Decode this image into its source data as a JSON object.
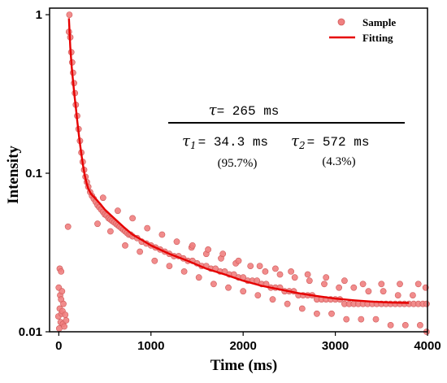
{
  "chart_data": {
    "type": "scatter",
    "xlabel": "Time (ms)",
    "ylabel": "Intensity",
    "xlim": [
      -100,
      4000
    ],
    "ylim": [
      0.01,
      1.1
    ],
    "yscale": "log",
    "x_ticks": [
      0,
      1000,
      2000,
      3000,
      4000
    ],
    "x_tick_labels": [
      "0",
      "1000",
      "2000",
      "3000",
      "4000"
    ],
    "y_ticks": [
      0.01,
      0.1,
      1
    ],
    "y_tick_labels": [
      "0.01",
      "0.1",
      "1"
    ],
    "legend_position": "top-right",
    "colors": {
      "sample": "#f08080",
      "sample_edge": "#d05a5a",
      "fitting": "#e60000"
    },
    "series": [
      {
        "name": "Sample",
        "kind": "scatter",
        "points": [
          [
            -5,
            0.0125
          ],
          [
            0,
            0.019
          ],
          [
            5,
            0.0105
          ],
          [
            10,
            0.014
          ],
          [
            15,
            0.017
          ],
          [
            20,
            0.0115
          ],
          [
            25,
            0.016
          ],
          [
            30,
            0.013
          ],
          [
            35,
            0.018
          ],
          [
            40,
            0.0135
          ],
          [
            45,
            0.0112
          ],
          [
            50,
            0.015
          ],
          [
            60,
            0.0108
          ],
          [
            70,
            0.0128
          ],
          [
            80,
            0.0118
          ],
          [
            10,
            0.025
          ],
          [
            25,
            0.024
          ],
          [
            100,
            0.046
          ],
          [
            110,
            0.78
          ],
          [
            115,
            1.0
          ],
          [
            125,
            0.72
          ],
          [
            135,
            0.58
          ],
          [
            145,
            0.5
          ],
          [
            155,
            0.43
          ],
          [
            165,
            0.37
          ],
          [
            175,
            0.32
          ],
          [
            185,
            0.27
          ],
          [
            200,
            0.23
          ],
          [
            215,
            0.19
          ],
          [
            230,
            0.16
          ],
          [
            245,
            0.135
          ],
          [
            260,
            0.118
          ],
          [
            275,
            0.105
          ],
          [
            290,
            0.095
          ],
          [
            305,
            0.088
          ],
          [
            320,
            0.082
          ],
          [
            340,
            0.076
          ],
          [
            360,
            0.072
          ],
          [
            380,
            0.069
          ],
          [
            400,
            0.066
          ],
          [
            420,
            0.063
          ],
          [
            440,
            0.061
          ],
          [
            460,
            0.059
          ],
          [
            480,
            0.057
          ],
          [
            500,
            0.055
          ],
          [
            520,
            0.054
          ],
          [
            540,
            0.052
          ],
          [
            560,
            0.051
          ],
          [
            580,
            0.05
          ],
          [
            600,
            0.049
          ],
          [
            620,
            0.048
          ],
          [
            640,
            0.047
          ],
          [
            660,
            0.046
          ],
          [
            680,
            0.045
          ],
          [
            700,
            0.044
          ],
          [
            720,
            0.043
          ],
          [
            740,
            0.042
          ],
          [
            760,
            0.041
          ],
          [
            780,
            0.041
          ],
          [
            800,
            0.04
          ],
          [
            850,
            0.039
          ],
          [
            900,
            0.037
          ],
          [
            950,
            0.036
          ],
          [
            1000,
            0.035
          ],
          [
            1050,
            0.034
          ],
          [
            1100,
            0.033
          ],
          [
            1150,
            0.032
          ],
          [
            1200,
            0.031
          ],
          [
            1250,
            0.03
          ],
          [
            1300,
            0.03
          ],
          [
            1350,
            0.029
          ],
          [
            1400,
            0.028
          ],
          [
            1450,
            0.028
          ],
          [
            1500,
            0.027
          ],
          [
            1550,
            0.026
          ],
          [
            1600,
            0.026
          ],
          [
            1650,
            0.025
          ],
          [
            1700,
            0.025
          ],
          [
            1750,
            0.024
          ],
          [
            1800,
            0.024
          ],
          [
            1850,
            0.023
          ],
          [
            1900,
            0.023
          ],
          [
            1950,
            0.022
          ],
          [
            2000,
            0.022
          ],
          [
            2050,
            0.021
          ],
          [
            2100,
            0.021
          ],
          [
            2150,
            0.021
          ],
          [
            2200,
            0.02
          ],
          [
            2250,
            0.02
          ],
          [
            2300,
            0.019
          ],
          [
            2350,
            0.019
          ],
          [
            2400,
            0.019
          ],
          [
            2450,
            0.018
          ],
          [
            2500,
            0.018
          ],
          [
            2550,
            0.018
          ],
          [
            2600,
            0.017
          ],
          [
            2650,
            0.017
          ],
          [
            2700,
            0.017
          ],
          [
            2750,
            0.017
          ],
          [
            2800,
            0.016
          ],
          [
            2850,
            0.016
          ],
          [
            2900,
            0.016
          ],
          [
            2950,
            0.016
          ],
          [
            3000,
            0.016
          ],
          [
            3050,
            0.016
          ],
          [
            3100,
            0.015
          ],
          [
            3150,
            0.015
          ],
          [
            3200,
            0.015
          ],
          [
            3250,
            0.015
          ],
          [
            3300,
            0.015
          ],
          [
            3350,
            0.015
          ],
          [
            3400,
            0.015
          ],
          [
            3450,
            0.015
          ],
          [
            3500,
            0.015
          ],
          [
            3550,
            0.015
          ],
          [
            3600,
            0.015
          ],
          [
            3650,
            0.015
          ],
          [
            3700,
            0.015
          ],
          [
            3750,
            0.015
          ],
          [
            3800,
            0.015
          ],
          [
            3850,
            0.015
          ],
          [
            3900,
            0.015
          ],
          [
            3950,
            0.015
          ],
          [
            3990,
            0.015
          ],
          [
            420,
            0.048
          ],
          [
            480,
            0.07
          ],
          [
            560,
            0.043
          ],
          [
            640,
            0.058
          ],
          [
            720,
            0.035
          ],
          [
            800,
            0.052
          ],
          [
            880,
            0.032
          ],
          [
            960,
            0.045
          ],
          [
            1040,
            0.028
          ],
          [
            1120,
            0.041
          ],
          [
            1200,
            0.026
          ],
          [
            1280,
            0.037
          ],
          [
            1360,
            0.024
          ],
          [
            1440,
            0.034
          ],
          [
            1520,
            0.022
          ],
          [
            1600,
            0.031
          ],
          [
            1680,
            0.02
          ],
          [
            1760,
            0.029
          ],
          [
            1840,
            0.019
          ],
          [
            1920,
            0.027
          ],
          [
            2000,
            0.018
          ],
          [
            2080,
            0.026
          ],
          [
            2160,
            0.017
          ],
          [
            2240,
            0.024
          ],
          [
            2320,
            0.016
          ],
          [
            2400,
            0.023
          ],
          [
            2480,
            0.015
          ],
          [
            2560,
            0.022
          ],
          [
            2640,
            0.014
          ],
          [
            2720,
            0.021
          ],
          [
            2800,
            0.013
          ],
          [
            2880,
            0.02
          ],
          [
            2960,
            0.013
          ],
          [
            3040,
            0.019
          ],
          [
            3120,
            0.012
          ],
          [
            3200,
            0.019
          ],
          [
            3280,
            0.012
          ],
          [
            3360,
            0.018
          ],
          [
            3440,
            0.012
          ],
          [
            3520,
            0.018
          ],
          [
            3600,
            0.011
          ],
          [
            3680,
            0.017
          ],
          [
            3760,
            0.011
          ],
          [
            3840,
            0.017
          ],
          [
            3920,
            0.011
          ],
          [
            3980,
            0.019
          ],
          [
            3990,
            0.01
          ],
          [
            1450,
            0.035
          ],
          [
            1620,
            0.033
          ],
          [
            1780,
            0.031
          ],
          [
            1950,
            0.028
          ],
          [
            2180,
            0.026
          ],
          [
            2350,
            0.025
          ],
          [
            2520,
            0.024
          ],
          [
            2700,
            0.023
          ],
          [
            2900,
            0.022
          ],
          [
            3100,
            0.021
          ],
          [
            3300,
            0.02
          ],
          [
            3500,
            0.02
          ],
          [
            3700,
            0.02
          ],
          [
            3900,
            0.02
          ]
        ]
      },
      {
        "name": "Fitting",
        "kind": "line",
        "points": [
          [
            110,
            0.95
          ],
          [
            125,
            0.62
          ],
          [
            140,
            0.47
          ],
          [
            155,
            0.38
          ],
          [
            170,
            0.31
          ],
          [
            185,
            0.26
          ],
          [
            200,
            0.215
          ],
          [
            220,
            0.17
          ],
          [
            240,
            0.138
          ],
          [
            260,
            0.115
          ],
          [
            280,
            0.098
          ],
          [
            300,
            0.087
          ],
          [
            320,
            0.08
          ],
          [
            350,
            0.074
          ],
          [
            400,
            0.069
          ],
          [
            450,
            0.064
          ],
          [
            500,
            0.059
          ],
          [
            600,
            0.052
          ],
          [
            700,
            0.046
          ],
          [
            800,
            0.041
          ],
          [
            900,
            0.038
          ],
          [
            1000,
            0.035
          ],
          [
            1200,
            0.031
          ],
          [
            1400,
            0.028
          ],
          [
            1600,
            0.025
          ],
          [
            1800,
            0.023
          ],
          [
            2000,
            0.021
          ],
          [
            2200,
            0.0195
          ],
          [
            2400,
            0.0185
          ],
          [
            2600,
            0.0175
          ],
          [
            2800,
            0.0168
          ],
          [
            3000,
            0.0162
          ],
          [
            3200,
            0.0158
          ],
          [
            3400,
            0.0155
          ],
          [
            3600,
            0.0153
          ],
          [
            3800,
            0.0152
          ]
        ]
      }
    ],
    "annotations": {
      "tau_avg": {
        "symbol": "τ",
        "value": "= 265 ms"
      },
      "tau1": {
        "symbol": "τ",
        "sub": "1",
        "value": "= 34.3 ms",
        "percent": "(95.7%)"
      },
      "tau2": {
        "symbol": "τ",
        "sub": "2",
        "value": "= 572 ms",
        "percent": "(4.3%)"
      }
    }
  }
}
